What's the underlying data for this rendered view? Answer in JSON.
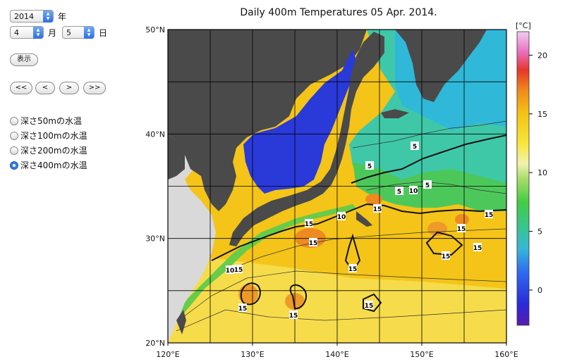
{
  "controls": {
    "year": "2014",
    "year_unit": "年",
    "month": "4",
    "month_unit": "月",
    "day": "5",
    "day_unit": "日",
    "display_button": "表示",
    "nav": [
      "<<",
      "<",
      ">",
      ">>"
    ],
    "depth_options": [
      {
        "label": "深さ50mの水温",
        "selected": false
      },
      {
        "label": "深さ100mの水温",
        "selected": false
      },
      {
        "label": "深さ200mの水温",
        "selected": false
      },
      {
        "label": "深さ400mの水温",
        "selected": true
      }
    ]
  },
  "chart_data": {
    "type": "heatmap",
    "title": "Daily 400m Temperatures 05 Apr. 2014.",
    "x_ticks": [
      "120°E",
      "130°E",
      "140°E",
      "150°E",
      "160°E"
    ],
    "x_values": [
      120,
      130,
      140,
      150,
      160
    ],
    "y_ticks": [
      "20°N",
      "30°N",
      "40°N",
      "50°N"
    ],
    "y_values": [
      20,
      30,
      40,
      50
    ],
    "xlim": [
      120,
      160
    ],
    "ylim": [
      20,
      50
    ],
    "grid": true,
    "colorbar": {
      "unit": "[°C]",
      "ticks": [
        "20",
        "15",
        "10",
        "5",
        "0"
      ],
      "tick_values": [
        20,
        15,
        10,
        5,
        0
      ],
      "range": [
        -3,
        22
      ]
    },
    "contour_labels": [
      "5",
      "5",
      "5",
      "5",
      "10",
      "15",
      "15",
      "10",
      "15",
      "15",
      "15",
      "15",
      "15",
      "10",
      "15",
      "15",
      "15",
      "15",
      "15"
    ]
  },
  "colors": {
    "land": "#474747",
    "land_light": "#d8d8d8",
    "sea_of_japan": "#2a3ad8",
    "warm": "#f5c216"
  }
}
